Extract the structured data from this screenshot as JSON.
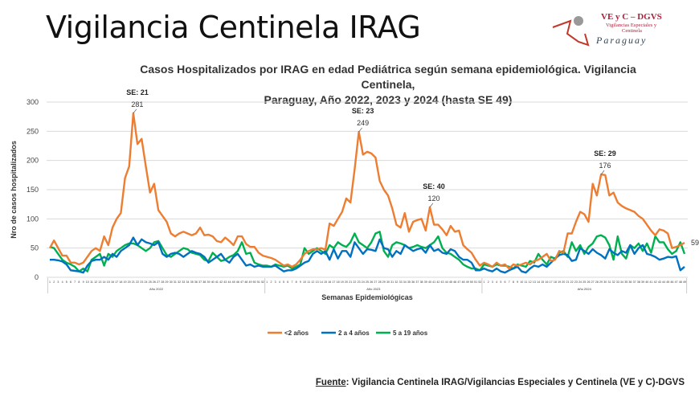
{
  "slide_title": "Vigilancia Centinela IRAG",
  "logo": {
    "line1": "VE y C – DGVS",
    "line2": "Vigilancias Especiales y",
    "line3": "Centinela",
    "line4": "Paraguay"
  },
  "source": {
    "label": "Fuente",
    "text": ": Vigilancia  Centinela IRAG/Vigilancias Especiales y Centinela (VE y C)-DGVS"
  },
  "chart_data": {
    "type": "line",
    "title_line1": "Casos Hospitalizados por IRAG en edad Pediátrica según semana epidemiológica. Vigilancia Centinela,",
    "title_line2": "Paraguay, Año 2022, 2023 y 2024 (hasta SE 49)",
    "xlabel": "Semanas Epidemiológicas",
    "ylabel": "Nro de casos hospitalizados",
    "ylim": [
      0,
      300
    ],
    "yticks": [
      0,
      50,
      100,
      150,
      200,
      250,
      300
    ],
    "grid": true,
    "legend_position": "bottom",
    "years": [
      {
        "label": "Año 2022",
        "weeks": 52
      },
      {
        "label": "Año 2023",
        "weeks": 52
      },
      {
        "label": "Año 2024",
        "weeks": 49
      }
    ],
    "series": [
      {
        "name": "<2  años",
        "color": "#ED7D31",
        "values": [
          50,
          63,
          50,
          37,
          37,
          25,
          25,
          22,
          25,
          35,
          45,
          50,
          45,
          70,
          55,
          85,
          100,
          110,
          170,
          190,
          281,
          228,
          237,
          190,
          145,
          160,
          115,
          105,
          95,
          75,
          70,
          75,
          78,
          75,
          72,
          75,
          85,
          72,
          73,
          70,
          62,
          60,
          68,
          62,
          55,
          70,
          70,
          57,
          52,
          52,
          42,
          37,
          35,
          33,
          30,
          25,
          20,
          22,
          18,
          22,
          30,
          40,
          45,
          48,
          48,
          50,
          47,
          92,
          88,
          100,
          112,
          135,
          128,
          185,
          249,
          210,
          215,
          212,
          205,
          165,
          150,
          140,
          118,
          90,
          85,
          110,
          78,
          95,
          98,
          100,
          80,
          120,
          90,
          90,
          82,
          72,
          88,
          78,
          80,
          55,
          48,
          42,
          30,
          20,
          25,
          22,
          18,
          25,
          20,
          22,
          15,
          22,
          20,
          22,
          25,
          22,
          28,
          30,
          35,
          40,
          28,
          30,
          45,
          42,
          75,
          75,
          95,
          112,
          108,
          95,
          160,
          140,
          176,
          175,
          140,
          145,
          128,
          122,
          118,
          115,
          112,
          105,
          100,
          90,
          80,
          72,
          82,
          80,
          75,
          50,
          52,
          55,
          59
        ]
      },
      {
        "name": "2 a 4 años",
        "color": "#0070C0",
        "values": [
          30,
          30,
          29,
          27,
          22,
          12,
          11,
          10,
          8,
          20,
          28,
          30,
          30,
          35,
          30,
          40,
          35,
          45,
          50,
          55,
          68,
          55,
          65,
          60,
          58,
          55,
          60,
          40,
          35,
          40,
          42,
          40,
          35,
          40,
          45,
          42,
          40,
          35,
          25,
          30,
          35,
          40,
          30,
          25,
          35,
          40,
          30,
          20,
          22,
          18,
          20,
          18,
          18,
          18,
          20,
          15,
          10,
          12,
          12,
          15,
          20,
          25,
          28,
          40,
          45,
          40,
          45,
          30,
          48,
          32,
          45,
          45,
          35,
          60,
          50,
          40,
          48,
          47,
          45,
          65,
          50,
          48,
          35,
          45,
          40,
          55,
          50,
          45,
          48,
          50,
          42,
          55,
          45,
          48,
          42,
          40,
          48,
          45,
          35,
          30,
          30,
          25,
          12,
          12,
          15,
          12,
          10,
          15,
          10,
          8,
          12,
          15,
          18,
          10,
          8,
          15,
          20,
          18,
          22,
          18,
          25,
          32,
          38,
          40,
          38,
          28,
          30,
          50,
          45,
          40,
          48,
          42,
          38,
          32,
          48,
          42,
          38,
          45,
          42,
          55,
          40,
          50,
          55,
          40,
          38,
          35,
          30,
          32,
          35,
          34,
          36,
          12,
          18
        ]
      },
      {
        "name": "5 a 19 años",
        "color": "#00B050",
        "values": [
          52,
          50,
          40,
          30,
          25,
          22,
          18,
          10,
          15,
          10,
          30,
          35,
          40,
          20,
          40,
          35,
          45,
          50,
          55,
          58,
          58,
          55,
          50,
          45,
          50,
          60,
          62,
          50,
          38,
          35,
          40,
          45,
          50,
          48,
          42,
          40,
          38,
          30,
          28,
          42,
          35,
          28,
          30,
          35,
          38,
          45,
          60,
          40,
          42,
          25,
          22,
          20,
          20,
          18,
          22,
          20,
          18,
          20,
          15,
          18,
          22,
          50,
          40,
          45,
          50,
          45,
          40,
          55,
          50,
          60,
          55,
          52,
          60,
          75,
          60,
          55,
          50,
          60,
          75,
          78,
          45,
          35,
          55,
          60,
          58,
          55,
          50,
          52,
          55,
          52,
          50,
          55,
          60,
          70,
          50,
          42,
          40,
          35,
          30,
          22,
          18,
          15,
          15,
          12,
          22,
          20,
          18,
          22,
          20,
          20,
          18,
          15,
          22,
          20,
          18,
          28,
          25,
          40,
          30,
          22,
          35,
          32,
          42,
          45,
          35,
          60,
          45,
          55,
          40,
          52,
          58,
          70,
          72,
          68,
          55,
          30,
          70,
          40,
          32,
          55,
          50,
          58,
          45,
          58,
          42,
          70,
          60,
          60,
          48,
          40,
          45,
          60,
          40
        ]
      }
    ],
    "annotations": [
      {
        "year_index": 0,
        "week": 21,
        "label": "SE: 21",
        "value": 281
      },
      {
        "year_index": 1,
        "week": 23,
        "label": "SE: 23",
        "value": 249
      },
      {
        "year_index": 1,
        "week": 40,
        "label": "SE: 40",
        "value": 120
      },
      {
        "year_index": 2,
        "week": 29,
        "label": "SE: 29",
        "value": 176
      },
      {
        "year_index": 2,
        "week": 49,
        "label": "",
        "value": 59
      }
    ]
  }
}
